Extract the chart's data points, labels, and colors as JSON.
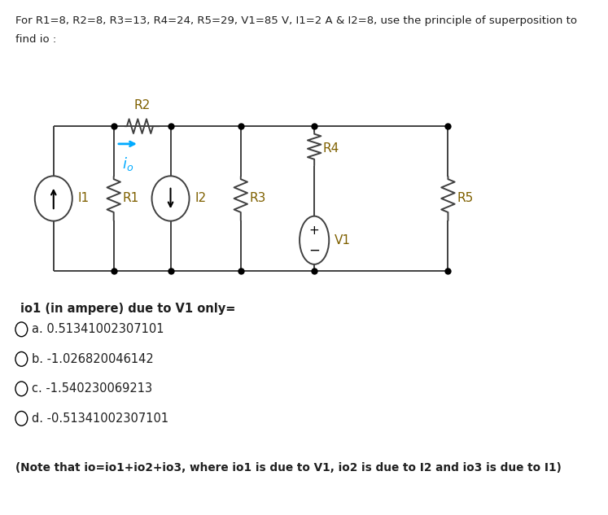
{
  "title_line1": "For R1=8, R2=8, R3=13, R4=24, R5=29, V1=85 V, I1=2 A & I2=8, use the principle of superposition to",
  "title_line2": "find io :",
  "bg_color": "#ffffff",
  "question_label": "io1 (in ampere) due to V1 only=",
  "choices": [
    "a. 0.51341002307101",
    "b. -1.026820046142",
    "c. -1.540230069213",
    "d. -0.51341002307101"
  ],
  "note": "(Note that io=io1+io2+io3, where io1 is due to V1, io2 is due to I2 and io3 is due to I1)",
  "io_arrow_color": "#00aaff",
  "label_color": "#7f6000",
  "wire_color": "#404040",
  "text_color": "#1f1f1f"
}
